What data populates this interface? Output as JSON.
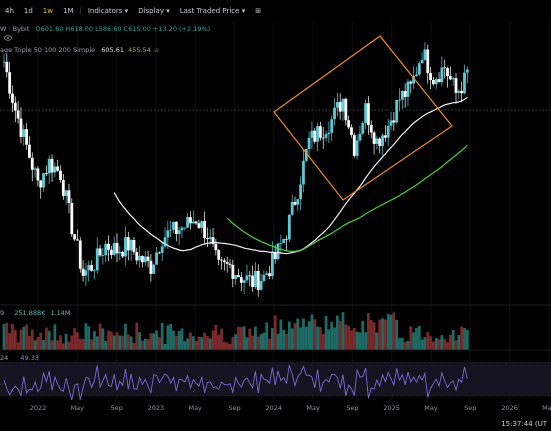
{
  "toolbar": {
    "intervals": [
      "4h",
      "1d",
      "1w",
      "1M"
    ],
    "active_interval": "1w",
    "indicators_label": "Indicators",
    "display_label": "Display",
    "price_type_label": "Last Traded Price",
    "extra_icon": "grid-icon",
    "dropdown_icon": "chevron-down-icon"
  },
  "legend": {
    "symbol": "W · Bybit",
    "ohlc": "O601.80  H618.00  L586.60  C615.00  +13.20 (+2.19%)",
    "indicator_name": "age Triple 50 100 200 Simple",
    "ma_value_1": "605.61",
    "ma_value_2": "455.54",
    "hide_glyph": "ø"
  },
  "volume_legend": {
    "index": "9",
    "value1": "251.888K",
    "value2": "1.14M"
  },
  "rsi_legend": {
    "index": "24",
    "value": "49.33"
  },
  "clock": "15:37:44 (UT",
  "colors": {
    "bull": "#5ec8d8",
    "bear": "#ffffff",
    "ma_white": "#f2f2f2",
    "ma_green": "#4cd03a",
    "channel": "#f08a24",
    "rsi": "#7b6ad6",
    "vol_up": "#1e6b66",
    "vol_down": "#7a2a2a",
    "active": "#f0c030"
  },
  "chart_data": {
    "type": "candlestick",
    "x_ticks": [
      "2022",
      "May",
      "Sep",
      "2023",
      "May",
      "Sep",
      "2024",
      "May",
      "Sep",
      "2025",
      "May",
      "Sep",
      "2026",
      "May"
    ],
    "price_waypoints": [
      {
        "x": "2021-11",
        "price": 630
      },
      {
        "x": "2021-12",
        "price": 540
      },
      {
        "x": "2022-01",
        "price": 470
      },
      {
        "x": "2022-02",
        "price": 400
      },
      {
        "x": "2022-03",
        "price": 440
      },
      {
        "x": "2022-04",
        "price": 420
      },
      {
        "x": "2022-05",
        "price": 320
      },
      {
        "x": "2022-06",
        "price": 230
      },
      {
        "x": "2022-07",
        "price": 250
      },
      {
        "x": "2022-08",
        "price": 285
      },
      {
        "x": "2022-09",
        "price": 275
      },
      {
        "x": "2022-10",
        "price": 285
      },
      {
        "x": "2022-11",
        "price": 260
      },
      {
        "x": "2022-12",
        "price": 245
      },
      {
        "x": "2023-01",
        "price": 300
      },
      {
        "x": "2023-02",
        "price": 310
      },
      {
        "x": "2023-03",
        "price": 320
      },
      {
        "x": "2023-04",
        "price": 335
      },
      {
        "x": "2023-05",
        "price": 305
      },
      {
        "x": "2023-06",
        "price": 240
      },
      {
        "x": "2023-07",
        "price": 245
      },
      {
        "x": "2023-08",
        "price": 225
      },
      {
        "x": "2023-09",
        "price": 215
      },
      {
        "x": "2023-10",
        "price": 225
      },
      {
        "x": "2023-11",
        "price": 260
      },
      {
        "x": "2023-12",
        "price": 310
      },
      {
        "x": "2024-01",
        "price": 390
      },
      {
        "x": "2024-02",
        "price": 480
      },
      {
        "x": "2024-03",
        "price": 500
      },
      {
        "x": "2024-04",
        "price": 520
      },
      {
        "x": "2024-05",
        "price": 560
      },
      {
        "x": "2024-06",
        "price": 470
      },
      {
        "x": "2024-07",
        "price": 540
      },
      {
        "x": "2024-08",
        "price": 480
      },
      {
        "x": "2024-09",
        "price": 510
      },
      {
        "x": "2024-10",
        "price": 560
      },
      {
        "x": "2024-11",
        "price": 580
      },
      {
        "x": "2024-12",
        "price": 650
      },
      {
        "x": "2025-01",
        "price": 600
      },
      {
        "x": "2025-02",
        "price": 620
      },
      {
        "x": "2025-03",
        "price": 570
      },
      {
        "x": "2025-04",
        "price": 601
      }
    ],
    "last_close": 615.0
  }
}
